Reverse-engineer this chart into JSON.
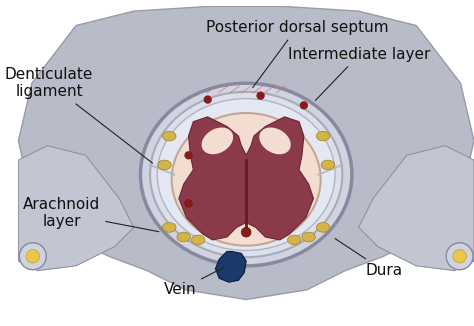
{
  "bg_color": "#ffffff",
  "labels": {
    "posterior_dorsal_septum": "Posterior dorsal septum",
    "intermediate_layer": "Intermediate layer",
    "denticulate_ligament": "Denticulate\nligament",
    "arachnoid_layer": "Arachnoid\nlayer",
    "vein": "Vein",
    "dura": "Dura"
  },
  "colors": {
    "dura_outer": "#b8bcc8",
    "arachnoid": "#d8dce8",
    "csf_space": "#e0e4ee",
    "cord_outer": "#f2ddd0",
    "gray_matter": "#8b3a4a",
    "vein_blue": "#1a3a6a",
    "blood_red": "#6b1a1a",
    "yellow_spots": "#d4b44a",
    "line_color": "#222222",
    "text_color": "#111111",
    "white_matter": "#f5e6d8"
  },
  "fontsize_label": 11,
  "fontsize_small": 9
}
